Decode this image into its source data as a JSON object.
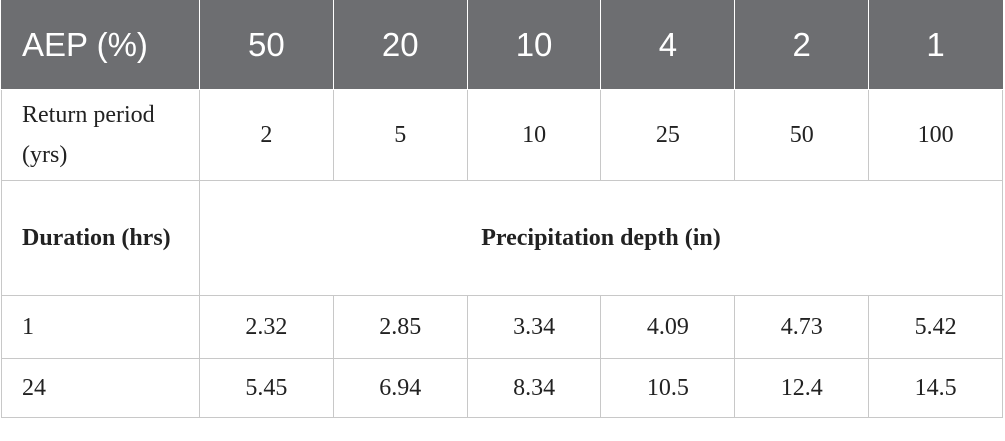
{
  "table": {
    "header": [
      "AEP (%)",
      "50",
      "20",
      "10",
      "4",
      "2",
      "1"
    ],
    "return_period": {
      "label": "Return period (yrs)",
      "values": [
        "2",
        "5",
        "10",
        "25",
        "50",
        "100"
      ]
    },
    "duration": {
      "label": "Duration (hrs)",
      "span_label": "Precipitation depth (in)"
    },
    "rows": [
      [
        "1",
        "2.32",
        "2.85",
        "3.34",
        "4.09",
        "4.73",
        "5.42"
      ],
      [
        "24",
        "5.45",
        "6.94",
        "8.34",
        "10.5",
        "12.4",
        "14.5"
      ]
    ]
  }
}
